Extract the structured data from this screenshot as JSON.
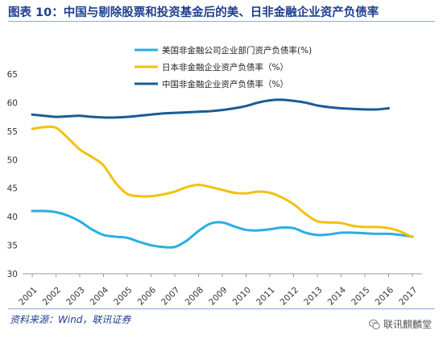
{
  "header": {
    "title": "图表 10：中国与剔除股票和投资基金后的美、日非金融企业资产负债率"
  },
  "footer": {
    "source": "资料来源：Wind，联讯证券",
    "watermark": "联讯麒麟堂",
    "watermark_icon": "wechat-icon"
  },
  "chart_data": {
    "type": "line",
    "title": "图表 10：中国与剔除股票和投资基金后的美、日非金融企业资产负债率",
    "xlabel": "",
    "ylabel": "",
    "x": [
      "2001",
      "2002",
      "2003",
      "2004",
      "2005",
      "2006",
      "2007",
      "2008",
      "2009",
      "2010",
      "2011",
      "2012",
      "2013",
      "2014",
      "2015",
      "2016",
      "2017"
    ],
    "ylim": [
      30,
      65
    ],
    "yticks": [
      30,
      35,
      40,
      45,
      50,
      55,
      60,
      65
    ],
    "grid": false,
    "legend_position": "top",
    "series": [
      {
        "name": "美国非金融公司企业部门资产负债率(%)",
        "color": "#29aee3",
        "points": [
          [
            2001.0,
            41.0
          ],
          [
            2001.5,
            41.0
          ],
          [
            2002.0,
            40.8
          ],
          [
            2002.5,
            40.2
          ],
          [
            2003.0,
            39.2
          ],
          [
            2003.5,
            37.8
          ],
          [
            2004.0,
            36.8
          ],
          [
            2004.5,
            36.5
          ],
          [
            2005.0,
            36.3
          ],
          [
            2005.5,
            35.6
          ],
          [
            2006.0,
            35.0
          ],
          [
            2006.5,
            34.7
          ],
          [
            2007.0,
            34.7
          ],
          [
            2007.5,
            35.8
          ],
          [
            2008.0,
            37.5
          ],
          [
            2008.5,
            38.8
          ],
          [
            2009.0,
            39.0
          ],
          [
            2009.5,
            38.3
          ],
          [
            2010.0,
            37.7
          ],
          [
            2010.5,
            37.6
          ],
          [
            2011.0,
            37.8
          ],
          [
            2011.5,
            38.1
          ],
          [
            2012.0,
            38.0
          ],
          [
            2012.5,
            37.2
          ],
          [
            2013.0,
            36.8
          ],
          [
            2013.5,
            36.9
          ],
          [
            2014.0,
            37.2
          ],
          [
            2014.5,
            37.2
          ],
          [
            2015.0,
            37.1
          ],
          [
            2015.5,
            37.0
          ],
          [
            2016.0,
            37.0
          ],
          [
            2016.5,
            36.8
          ],
          [
            2017.0,
            36.5
          ]
        ]
      },
      {
        "name": "日本非金融企业资产负债率（%）",
        "color": "#f2c10f",
        "points": [
          [
            2001.0,
            55.4
          ],
          [
            2001.5,
            55.7
          ],
          [
            2002.0,
            55.6
          ],
          [
            2002.5,
            53.8
          ],
          [
            2003.0,
            51.8
          ],
          [
            2003.5,
            50.5
          ],
          [
            2004.0,
            49.0
          ],
          [
            2004.5,
            46.0
          ],
          [
            2005.0,
            44.0
          ],
          [
            2005.5,
            43.6
          ],
          [
            2006.0,
            43.6
          ],
          [
            2006.5,
            43.9
          ],
          [
            2007.0,
            44.4
          ],
          [
            2007.5,
            45.2
          ],
          [
            2008.0,
            45.6
          ],
          [
            2008.5,
            45.2
          ],
          [
            2009.0,
            44.7
          ],
          [
            2009.5,
            44.2
          ],
          [
            2010.0,
            44.1
          ],
          [
            2010.5,
            44.4
          ],
          [
            2011.0,
            44.2
          ],
          [
            2011.5,
            43.4
          ],
          [
            2012.0,
            42.2
          ],
          [
            2012.5,
            40.5
          ],
          [
            2013.0,
            39.2
          ],
          [
            2013.5,
            39.0
          ],
          [
            2014.0,
            38.9
          ],
          [
            2014.5,
            38.4
          ],
          [
            2015.0,
            38.2
          ],
          [
            2015.5,
            38.2
          ],
          [
            2016.0,
            38.0
          ],
          [
            2016.5,
            37.4
          ],
          [
            2017.0,
            36.4
          ]
        ]
      },
      {
        "name": "中国非金融企业资产负债率（%）",
        "color": "#1a5c96",
        "points": [
          [
            2001.0,
            57.9
          ],
          [
            2001.5,
            57.7
          ],
          [
            2002.0,
            57.5
          ],
          [
            2002.5,
            57.6
          ],
          [
            2003.0,
            57.7
          ],
          [
            2003.5,
            57.5
          ],
          [
            2004.0,
            57.4
          ],
          [
            2004.5,
            57.4
          ],
          [
            2005.0,
            57.5
          ],
          [
            2005.5,
            57.7
          ],
          [
            2006.0,
            57.9
          ],
          [
            2006.5,
            58.1
          ],
          [
            2007.0,
            58.2
          ],
          [
            2007.5,
            58.3
          ],
          [
            2008.0,
            58.4
          ],
          [
            2008.5,
            58.5
          ],
          [
            2009.0,
            58.7
          ],
          [
            2009.5,
            59.0
          ],
          [
            2010.0,
            59.4
          ],
          [
            2010.5,
            60.0
          ],
          [
            2011.0,
            60.4
          ],
          [
            2011.5,
            60.5
          ],
          [
            2012.0,
            60.3
          ],
          [
            2012.5,
            60.0
          ],
          [
            2013.0,
            59.5
          ],
          [
            2013.5,
            59.2
          ],
          [
            2014.0,
            59.0
          ],
          [
            2014.5,
            58.9
          ],
          [
            2015.0,
            58.8
          ],
          [
            2015.5,
            58.8
          ],
          [
            2016.0,
            59.0
          ]
        ]
      }
    ]
  }
}
